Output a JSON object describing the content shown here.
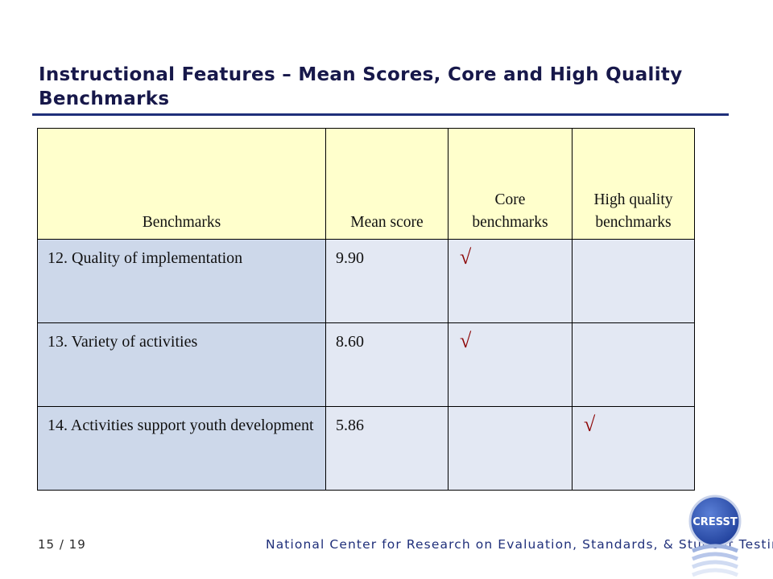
{
  "slide": {
    "title": "Instructional Features – Mean Scores, Core and High Quality Benchmarks"
  },
  "table": {
    "headers": [
      "Benchmarks",
      "Mean score",
      "Core benchmarks",
      "High quality benchmarks"
    ],
    "rows": [
      {
        "benchmark": "12. Quality of implementation",
        "mean": "9.90",
        "core": "√",
        "high": ""
      },
      {
        "benchmark": "13. Variety of activities",
        "mean": "8.60",
        "core": "√",
        "high": ""
      },
      {
        "benchmark": "14. Activities support youth development",
        "mean": "5.86",
        "core": "",
        "high": "√"
      }
    ]
  },
  "footer": {
    "page": "15 / 19",
    "org": "National Center for Research on Evaluation, Standards, & Student Testing",
    "logo_text": "CRESST"
  },
  "colors": {
    "title": "#17184a",
    "rule": "#1f2f7a",
    "header_bg": "#ffffcc",
    "first_col_bg": "#cdd8ea",
    "cell_bg": "#e3e8f3",
    "check": "#8b0000",
    "logo": "#1f3f9a"
  }
}
